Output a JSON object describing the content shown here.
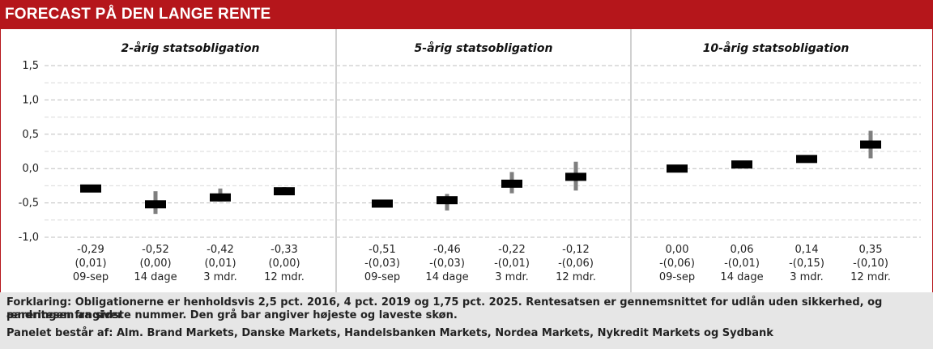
{
  "header": {
    "title": "FORECAST PÅ DEN LANGE RENTE"
  },
  "colors": {
    "header_bg": "#b5161b",
    "bar": "#000000",
    "range": "#7f7f7f",
    "grid": "#bfbfbf",
    "footer_bg": "#e6e6e6"
  },
  "footer": {
    "line1": "Forklaring: Obligationerne er henholdsvis 2,5 pct. 2016, 4 pct. 2019 og 1,75 pct. 2025. Rentesatsen er gennemsnittet for udlån uden sikkerhed, og parentesen angiver",
    "line2": "ændringen fra sidste nummer. Den grå bar angiver højeste og laveste skøn.",
    "line3": "Panelet består af: Alm. Brand Markets, Danske Markets, Handelsbanken Markets, Nordea Markets, Nykredit Markets og Sydbank"
  },
  "chart_data": {
    "type": "range-marker",
    "y_ticks": [
      "1,5",
      "1,0",
      "0,5",
      "0,0",
      "-0,5",
      "-1,0"
    ],
    "y_tick_values": [
      1.5,
      1.0,
      0.5,
      0.0,
      -0.5,
      -1.0
    ],
    "ylim": [
      -1.0,
      1.5
    ],
    "grid": true,
    "panels": [
      {
        "title": "2-årig statsobligation",
        "points": [
          {
            "value": -0.29,
            "low": -0.29,
            "high": -0.29,
            "label_value": "-0,29",
            "label_change": "(0,01)",
            "label_period": "09-sep"
          },
          {
            "value": -0.52,
            "low": -0.66,
            "high": -0.33,
            "label_value": "-0,52",
            "label_change": "(0,00)",
            "label_period": "14 dage"
          },
          {
            "value": -0.42,
            "low": -0.48,
            "high": -0.29,
            "label_value": "-0,42",
            "label_change": "(0,01)",
            "label_period": "3 mdr."
          },
          {
            "value": -0.33,
            "low": -0.38,
            "high": -0.27,
            "label_value": "-0,33",
            "label_change": "(0,00)",
            "label_period": "12 mdr."
          }
        ]
      },
      {
        "title": "5-årig statsobligation",
        "points": [
          {
            "value": -0.51,
            "low": -0.51,
            "high": -0.51,
            "label_value": "-0,51",
            "label_change": "-(0,03)",
            "label_period": "09-sep"
          },
          {
            "value": -0.46,
            "low": -0.61,
            "high": -0.37,
            "label_value": "-0,46",
            "label_change": "-(0,03)",
            "label_period": "14 dage"
          },
          {
            "value": -0.22,
            "low": -0.36,
            "high": -0.05,
            "label_value": "-0,22",
            "label_change": "-(0,01)",
            "label_period": "3 mdr."
          },
          {
            "value": -0.12,
            "low": -0.32,
            "high": 0.1,
            "label_value": "-0,12",
            "label_change": "-(0,06)",
            "label_period": "12 mdr."
          }
        ]
      },
      {
        "title": "10-årig statsobligation",
        "points": [
          {
            "value": 0.0,
            "low": 0.0,
            "high": 0.0,
            "label_value": "0,00",
            "label_change": "-(0,06)",
            "label_period": "09-sep"
          },
          {
            "value": 0.06,
            "low": 0.06,
            "high": 0.06,
            "label_value": "0,06",
            "label_change": "-(0,01)",
            "label_period": "14 dage"
          },
          {
            "value": 0.14,
            "low": 0.14,
            "high": 0.14,
            "label_value": "0,14",
            "label_change": "-(0,15)",
            "label_period": "3 mdr."
          },
          {
            "value": 0.35,
            "low": 0.15,
            "high": 0.55,
            "label_value": "0,35",
            "label_change": "-(0,10)",
            "label_period": "12 mdr."
          }
        ]
      }
    ]
  }
}
